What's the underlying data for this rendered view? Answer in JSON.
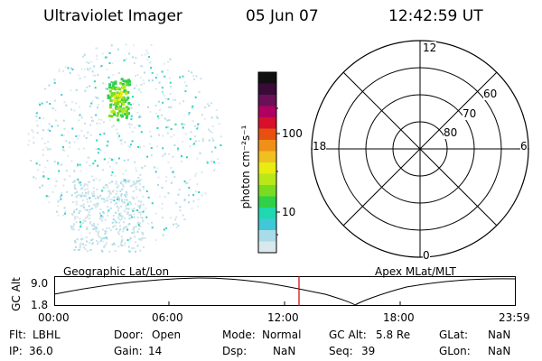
{
  "header": {
    "title": "Ultraviolet Imager",
    "date": "05 Jun 07",
    "time": "12:42:59 UT"
  },
  "colorbar": {
    "label": "photon cm⁻²s⁻¹",
    "ticks": [
      "100",
      "10"
    ],
    "colors": [
      "#101010",
      "#3a0a38",
      "#6a1058",
      "#b00060",
      "#d8102a",
      "#e85010",
      "#f09018",
      "#f0c020",
      "#e8ec10",
      "#b8e818",
      "#78dc20",
      "#30d048",
      "#20d8b0",
      "#40c8d8",
      "#a8dce8",
      "#d8e8ec"
    ]
  },
  "polar": {
    "top": "12",
    "bottom": "0",
    "left": "18",
    "right": "6",
    "rings": [
      "60",
      "70",
      "80"
    ]
  },
  "timeline": {
    "left_title": "Geographic Lat/Lon",
    "right_title": "Apex MLat/MLT",
    "axis_label": "GC Alt",
    "ymax": "9.0",
    "ymin": "1.8",
    "times": [
      "00:00",
      "06:00",
      "12:00",
      "18:00",
      "23:59"
    ],
    "current_color": "#cc0000"
  },
  "info": {
    "flt_label": "Flt:",
    "flt": "LBHL",
    "ip_label": "IP:",
    "ip": "36.0",
    "door_label": "Door:",
    "door": "Open",
    "gain_label": "Gain:",
    "gain": "14",
    "mode_label": "Mode:",
    "mode": "Normal",
    "dsp_label": "Dsp:",
    "dsp": "NaN",
    "gcalt_label": "GC Alt:",
    "gcalt": "5.8 Re",
    "seq_label": "Seq:",
    "seq": "39",
    "glat_label": "GLat:",
    "glat": "NaN",
    "glon_label": "GLon:",
    "glon": "NaN"
  }
}
